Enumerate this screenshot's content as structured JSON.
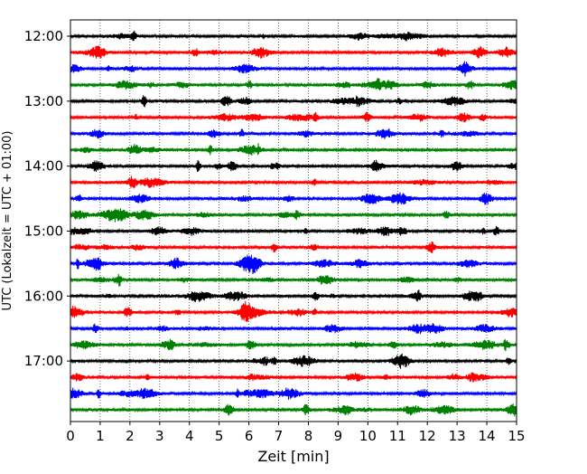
{
  "chart_data": {
    "type": "line",
    "xlabel": "Zeit  [min]",
    "ylabel": "UTC (Lokalzeit = UTC + 01:00)",
    "xlim": [
      0,
      15
    ],
    "x_ticks": [
      0,
      1,
      2,
      3,
      4,
      5,
      6,
      7,
      8,
      9,
      10,
      11,
      12,
      13,
      14,
      15
    ],
    "y_ticks": [
      "12:00",
      "13:00",
      "14:00",
      "15:00",
      "16:00",
      "17:00"
    ],
    "grid": "vertical-dotted",
    "trace_interval_minutes": 15,
    "colors": {
      "black": "#000000",
      "red": "#ff0000",
      "blue": "#0000ff",
      "green": "#008000"
    },
    "series": [
      {
        "start": "12:00",
        "color": "#000000"
      },
      {
        "start": "12:15",
        "color": "#ff0000"
      },
      {
        "start": "12:30",
        "color": "#0000ff"
      },
      {
        "start": "12:45",
        "color": "#008000"
      },
      {
        "start": "13:00",
        "color": "#000000"
      },
      {
        "start": "13:15",
        "color": "#ff0000"
      },
      {
        "start": "13:30",
        "color": "#0000ff"
      },
      {
        "start": "13:45",
        "color": "#008000"
      },
      {
        "start": "14:00",
        "color": "#000000"
      },
      {
        "start": "14:15",
        "color": "#ff0000"
      },
      {
        "start": "14:30",
        "color": "#0000ff"
      },
      {
        "start": "14:45",
        "color": "#008000"
      },
      {
        "start": "15:00",
        "color": "#000000"
      },
      {
        "start": "15:15",
        "color": "#ff0000"
      },
      {
        "start": "15:30",
        "color": "#0000ff"
      },
      {
        "start": "15:45",
        "color": "#008000"
      },
      {
        "start": "16:00",
        "color": "#000000"
      },
      {
        "start": "16:15",
        "color": "#ff0000"
      },
      {
        "start": "16:30",
        "color": "#0000ff"
      },
      {
        "start": "16:45",
        "color": "#008000"
      },
      {
        "start": "17:00",
        "color": "#000000"
      },
      {
        "start": "17:15",
        "color": "#ff0000"
      },
      {
        "start": "17:30",
        "color": "#0000ff"
      },
      {
        "start": "17:45",
        "color": "#008000"
      }
    ]
  }
}
